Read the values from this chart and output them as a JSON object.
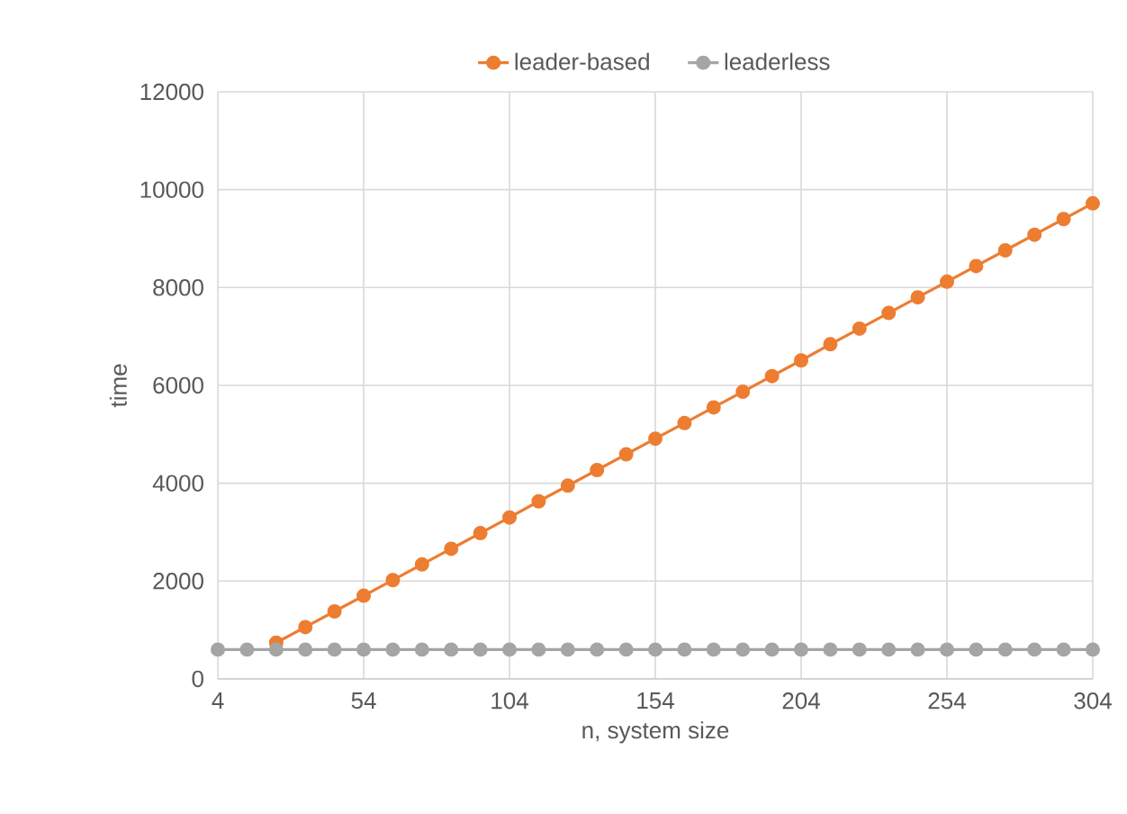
{
  "chart_data": {
    "type": "line",
    "xlabel": "n, system size",
    "ylabel": "time",
    "x": [
      4,
      14,
      24,
      34,
      44,
      54,
      64,
      74,
      84,
      94,
      104,
      114,
      124,
      134,
      144,
      154,
      164,
      174,
      184,
      194,
      204,
      214,
      224,
      234,
      244,
      254,
      264,
      274,
      284,
      294,
      304
    ],
    "series": [
      {
        "name": "leader-based",
        "color": "#ed7d31",
        "values": [
          null,
          null,
          740,
          1060,
          1380,
          1700,
          2020,
          2340,
          2660,
          2980,
          3300,
          3630,
          3950,
          4270,
          4590,
          4910,
          5230,
          5550,
          5870,
          6190,
          6510,
          6840,
          7160,
          7480,
          7800,
          8120,
          8440,
          8760,
          9080,
          9400,
          9720
        ]
      },
      {
        "name": "leaderless",
        "color": "#a5a5a5",
        "values": [
          600,
          600,
          600,
          600,
          600,
          600,
          600,
          600,
          600,
          600,
          600,
          600,
          600,
          600,
          600,
          600,
          600,
          600,
          600,
          600,
          600,
          600,
          600,
          600,
          600,
          600,
          600,
          600,
          600,
          600,
          600
        ]
      }
    ],
    "xlim": [
      4,
      304
    ],
    "xticks": [
      4,
      54,
      104,
      154,
      204,
      254,
      304
    ],
    "ylim": [
      0,
      12000
    ],
    "yticks": [
      0,
      2000,
      4000,
      6000,
      8000,
      10000,
      12000
    ],
    "grid": true,
    "legend": "top",
    "marker": "circle",
    "line_style": "solid"
  }
}
